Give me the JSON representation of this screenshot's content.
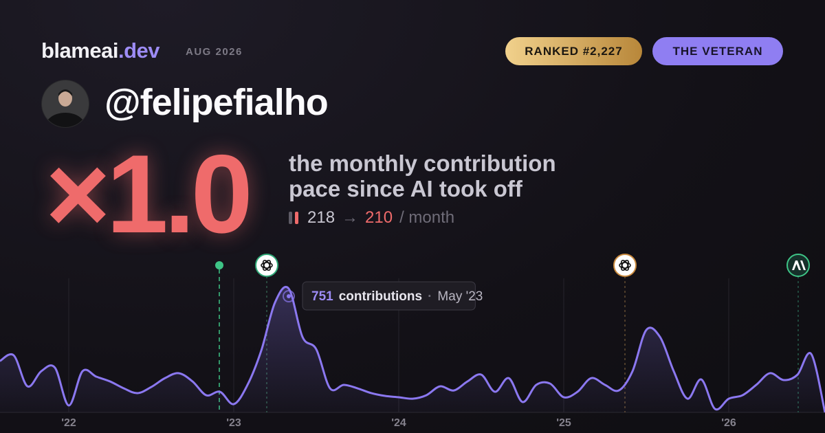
{
  "header": {
    "brand": "blameai",
    "brand_tld": ".dev",
    "period": "AUG 2026",
    "rank": "RANKED #2,227",
    "badge": "THE VETERAN"
  },
  "profile": {
    "handle": "@felipefialho"
  },
  "stat": {
    "multiplier": "×1.0",
    "caption": [
      "the monthly contribution",
      "pace since AI took off"
    ],
    "before": 218,
    "arrow": "→",
    "after": 210,
    "unit": "/ month"
  },
  "chart_data": {
    "type": "line",
    "color": "#8b78f0",
    "categories": [
      null,
      null,
      null,
      null,
      null,
      "'22",
      null,
      null,
      null,
      null,
      null,
      null,
      null,
      null,
      null,
      null,
      null,
      "'23",
      null,
      null,
      null,
      null,
      null,
      null,
      null,
      null,
      null,
      null,
      null,
      "'24",
      null,
      null,
      null,
      null,
      null,
      null,
      null,
      null,
      null,
      null,
      null,
      "'25",
      null,
      null,
      null,
      null,
      null,
      null,
      null,
      null,
      null,
      null,
      null,
      "'26",
      null,
      null,
      null,
      null,
      null,
      null,
      null
    ],
    "values": [
      312,
      346,
      158,
      250,
      271,
      42,
      250,
      217,
      188,
      146,
      117,
      154,
      208,
      238,
      188,
      104,
      125,
      50,
      167,
      375,
      667,
      751,
      458,
      383,
      146,
      167,
      146,
      117,
      100,
      92,
      83,
      104,
      158,
      133,
      188,
      229,
      125,
      208,
      63,
      167,
      175,
      92,
      125,
      208,
      167,
      133,
      250,
      500,
      458,
      250,
      83,
      200,
      21,
      83,
      104,
      167,
      238,
      196,
      229,
      354,
      0
    ],
    "tooltip": {
      "label": "contributions",
      "date": "May '23"
    }
  }
}
